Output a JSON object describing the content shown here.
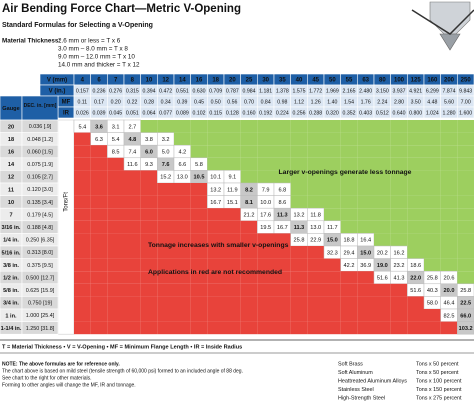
{
  "title": "Air Bending Force Chart—Metric V-Opening",
  "subtitle": "Standard Formulas for Selecting a V-Opening",
  "formulas": {
    "label": "Material Thickness:",
    "items": [
      "2.6 mm or less = T x 6",
      "3.0 mm – 8.0 mm = T x 8",
      "9.0 mm – 12.0 mm = T x 10",
      "14.0 mm and thicker = T x 12"
    ]
  },
  "table": {
    "v_mm_label": "V (mm)",
    "v_in_label": "V (in.)",
    "mf_label": "MF",
    "ir_label": "IR",
    "gauge_label": "Gauge",
    "dec_label": "DEC. in. [mm]",
    "unit_label": "Tons/Ft",
    "v_mm": [
      "4",
      "6",
      "7",
      "8",
      "10",
      "12",
      "14",
      "16",
      "18",
      "20",
      "25",
      "30",
      "35",
      "40",
      "45",
      "50",
      "55",
      "63",
      "80",
      "100",
      "125",
      "160",
      "200",
      "250"
    ],
    "v_in": [
      "0.157",
      "0.236",
      "0.276",
      "0.315",
      "0.394",
      "0.472",
      "0.551",
      "0.630",
      "0.709",
      "0.787",
      "0.984",
      "1.181",
      "1.378",
      "1.575",
      "1.772",
      "1.969",
      "2.165",
      "2.480",
      "3.150",
      "3.937",
      "4.921",
      "6.299",
      "7.874",
      "9.843"
    ],
    "mf": [
      "0.11",
      "0.17",
      "0.20",
      "0.22",
      "0.28",
      "0.34",
      "0.39",
      "0.45",
      "0.50",
      "0.56",
      "0.70",
      "0.84",
      "0.98",
      "1.12",
      "1.26",
      "1.40",
      "1.54",
      "1.76",
      "2.24",
      "2.80",
      "3.50",
      "4.48",
      "5.60",
      "7.00"
    ],
    "ir": [
      "0.026",
      "0.039",
      "0.045",
      "0.051",
      "0.064",
      "0.077",
      "0.089",
      "0.102",
      "0.115",
      "0.128",
      "0.160",
      "0.192",
      "0.224",
      "0.256",
      "0.288",
      "0.320",
      "0.352",
      "0.403",
      "0.512",
      "0.640",
      "0.800",
      "1.024",
      "1.280",
      "1.600"
    ],
    "rows": [
      {
        "gauge": "20",
        "dec": "0.036 [.9]",
        "cells": [
          "5.4",
          {
            "text": "3.6",
            "bold": true
          },
          "3.1",
          "2.7"
        ]
      },
      {
        "gauge": "18",
        "dec": "0.048 [1.2]",
        "cells": [
          null,
          "6.3",
          "5.4",
          {
            "text": "4.8",
            "bold": true
          },
          "3.8",
          "3.2"
        ]
      },
      {
        "gauge": "16",
        "dec": "0.060 [1.5]",
        "cells": [
          null,
          null,
          "8.5",
          "7.4",
          {
            "text": "6.0",
            "bold": true
          },
          "5.0",
          "4.2"
        ]
      },
      {
        "gauge": "14",
        "dec": "0.075 [1.9]",
        "cells": [
          null,
          null,
          null,
          "11.6",
          "9.3",
          {
            "text": "7.6",
            "bold": true
          },
          "6.6",
          "5.8"
        ]
      },
      {
        "gauge": "12",
        "dec": "0.105 [2.7]",
        "cells": [
          null,
          null,
          null,
          null,
          null,
          "15.2",
          "13.0",
          {
            "text": "10.5",
            "bold": true
          },
          "10.1",
          "9.1"
        ]
      },
      {
        "gauge": "11",
        "dec": "0.120 [3.0]",
        "cells": [
          null,
          null,
          null,
          null,
          null,
          null,
          null,
          null,
          "13.2",
          "11.9",
          {
            "text": "8.2",
            "bold": true
          },
          "7.9",
          "6.8"
        ]
      },
      {
        "gauge": "10",
        "dec": "0.135 [3.4]",
        "cells": [
          null,
          null,
          null,
          null,
          null,
          null,
          null,
          null,
          "16.7",
          "15.1",
          {
            "text": "8.1",
            "bold": true
          },
          "10.0",
          "8.6"
        ]
      },
      {
        "gauge": "7",
        "dec": "0.179 [4.5]",
        "cells": [
          null,
          null,
          null,
          null,
          null,
          null,
          null,
          null,
          null,
          null,
          "21.2",
          "17.6",
          {
            "text": "11.3",
            "bold": true
          },
          "13.2",
          "11.8"
        ]
      },
      {
        "gauge": "3/16 in.",
        "dec": "0.188 [4.8]",
        "cells": [
          null,
          null,
          null,
          null,
          null,
          null,
          null,
          null,
          null,
          null,
          null,
          "19.5",
          "16.7",
          {
            "text": "11.3",
            "bold": true
          },
          "13.0",
          "11.7"
        ]
      },
      {
        "gauge": "1/4 in.",
        "dec": "0.250 [6.35]",
        "cells": [
          null,
          null,
          null,
          null,
          null,
          null,
          null,
          null,
          null,
          null,
          null,
          null,
          null,
          "25.8",
          "22.9",
          {
            "text": "15.0",
            "bold": true
          },
          "18.8",
          "16.4"
        ]
      },
      {
        "gauge": "5/16 in.",
        "dec": "0.313 [8.0]",
        "cells": [
          null,
          null,
          null,
          null,
          null,
          null,
          null,
          null,
          null,
          null,
          null,
          null,
          null,
          null,
          null,
          "32.3",
          "29.4",
          {
            "text": "15.0",
            "bold": true
          },
          "20.2",
          "16.2"
        ]
      },
      {
        "gauge": "3/8 in.",
        "dec": "0.375 [9.5]",
        "cells": [
          null,
          null,
          null,
          null,
          null,
          null,
          null,
          null,
          null,
          null,
          null,
          null,
          null,
          null,
          null,
          null,
          "42.2",
          "36.9",
          {
            "text": "19.0",
            "bold": true
          },
          "23.2",
          "18.6"
        ]
      },
      {
        "gauge": "1/2 in.",
        "dec": "0.500 [12.7]",
        "cells": [
          null,
          null,
          null,
          null,
          null,
          null,
          null,
          null,
          null,
          null,
          null,
          null,
          null,
          null,
          null,
          null,
          null,
          null,
          "51.6",
          "41.3",
          {
            "text": "22.0",
            "bold": true
          },
          "25.8",
          "20.6"
        ]
      },
      {
        "gauge": "5/8 in.",
        "dec": "0.625 [15.9]",
        "cells": [
          null,
          null,
          null,
          null,
          null,
          null,
          null,
          null,
          null,
          null,
          null,
          null,
          null,
          null,
          null,
          null,
          null,
          null,
          null,
          null,
          "51.6",
          "40.3",
          {
            "text": "20.0",
            "bold": true
          },
          "25.8"
        ]
      },
      {
        "gauge": "3/4 in.",
        "dec": "0.750 [19]",
        "cells": [
          null,
          null,
          null,
          null,
          null,
          null,
          null,
          null,
          null,
          null,
          null,
          null,
          null,
          null,
          null,
          null,
          null,
          null,
          null,
          null,
          null,
          "58.0",
          "46.4",
          {
            "text": "22.5",
            "bold": true
          }
        ]
      },
      {
        "gauge": "1 in.",
        "dec": "1.000 [25.4]",
        "cells": [
          null,
          null,
          null,
          null,
          null,
          null,
          null,
          null,
          null,
          null,
          null,
          null,
          null,
          null,
          null,
          null,
          null,
          null,
          null,
          null,
          null,
          null,
          "82.5",
          {
            "text": "66.0",
            "bold": true
          }
        ]
      },
      {
        "gauge": "1-1/4 in.",
        "dec": "1.250 [31.8]",
        "cells": [
          null,
          null,
          null,
          null,
          null,
          null,
          null,
          null,
          null,
          null,
          null,
          null,
          null,
          null,
          null,
          null,
          null,
          null,
          null,
          null,
          null,
          null,
          null,
          {
            "text": "103.2",
            "bold": true
          }
        ]
      }
    ]
  },
  "annotations": {
    "green": "Larger v-openings generate less tonnage",
    "red_1": "Tonnage increases with smaller v-openings",
    "red_2": "Applications in red are not recommended"
  },
  "legend": "T = Material Thickness • V = V-Opening • MF = Minimum Flange Length • IR = Inside Radius",
  "notes": [
    "NOTE: The above formulas are for reference only.",
    "The chart above is based on mild steel (tensile strength of 60,000 psi) formed to an included angle of 88 deg.",
    "See chart to the right for other materials.",
    "Forming to other angles will change the MF, IR and tonnage."
  ],
  "materials": [
    {
      "name": "Soft Brass",
      "factor": "Tons x 50 percent"
    },
    {
      "name": "Soft Aluminum",
      "factor": "Tons x 50 percent"
    },
    {
      "name": "Heattreated Aluminum Alloys",
      "factor": "Tons x 100 percent"
    },
    {
      "name": "Stainless Steel",
      "factor": "Tons x 150 percent"
    },
    {
      "name": "High-Strength Steel",
      "factor": "Tons x 275 percent"
    }
  ]
}
